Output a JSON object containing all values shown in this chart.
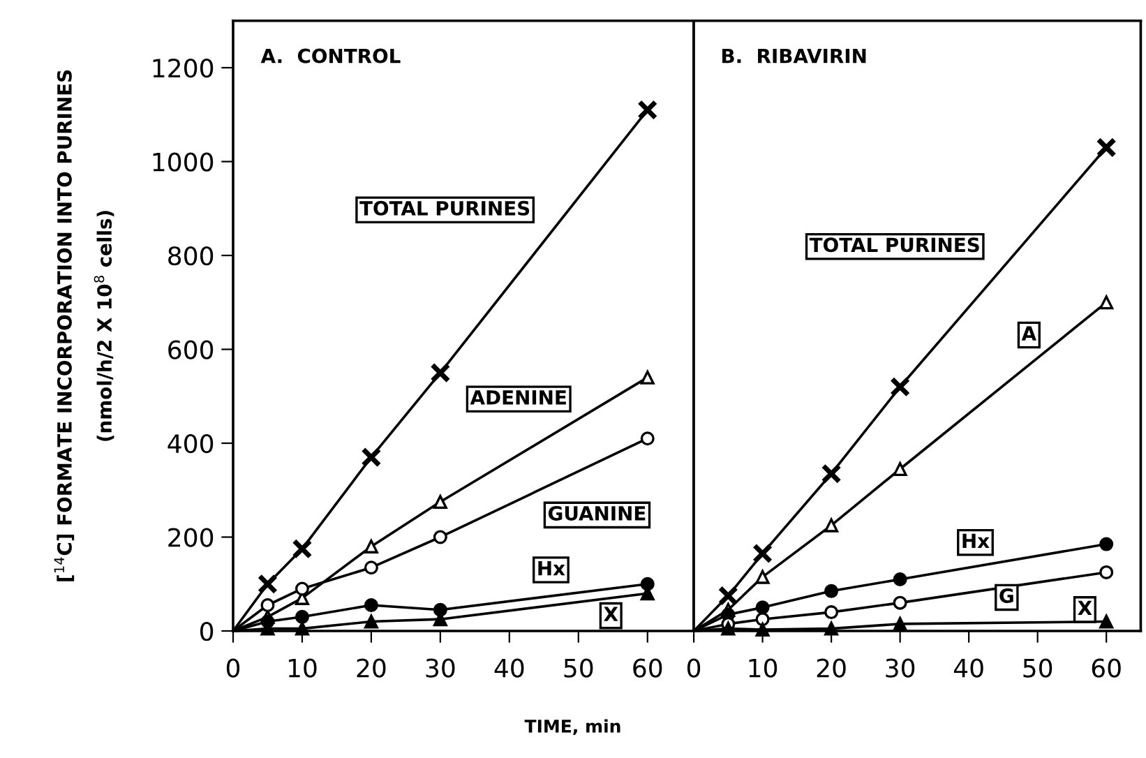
{
  "chart_data": [
    {
      "type": "line",
      "title": "A.  CONTROL",
      "ylabel": "[$^{14}$C] FORMATE INCORPORATION INTO PURINES\n(nmol/h/2 X 10$^{8}$ cells)",
      "xlabel": "TIME, min",
      "x": [
        0,
        5,
        10,
        20,
        30,
        60
      ],
      "xlim": [
        0,
        66.7
      ],
      "xticks": [
        0,
        10,
        20,
        30,
        40,
        50,
        60
      ],
      "ylim": [
        0,
        1300
      ],
      "yticks": [
        0,
        200,
        400,
        600,
        800,
        1000,
        1200
      ],
      "grid": false,
      "legend": false,
      "series": [
        {
          "name": "TOTAL PURINES",
          "color": "#000000",
          "marker": "cross",
          "values": [
            0,
            100,
            175,
            370,
            550,
            1110
          ]
        },
        {
          "name": "ADENINE",
          "color": "#000000",
          "marker": "triangle",
          "values": [
            0,
            30,
            70,
            180,
            275,
            540
          ]
        },
        {
          "name": "GUANINE",
          "color": "#000000",
          "marker": "circle",
          "values": [
            0,
            55,
            90,
            135,
            200,
            410
          ]
        },
        {
          "name": "Hx",
          "color": "#000000",
          "marker": "circle",
          "values": [
            0,
            20,
            30,
            55,
            45,
            100
          ]
        },
        {
          "name": "X",
          "color": "#000000",
          "marker": "triangle",
          "values": [
            0,
            5,
            5,
            20,
            25,
            80
          ]
        }
      ]
    },
    {
      "type": "line",
      "title": "B.  RIBAVIRIN",
      "tick_labels": "x",
      "x": [
        0,
        5,
        10,
        20,
        30,
        60
      ],
      "xlim": [
        0,
        65
      ],
      "xticks": [
        0,
        10,
        20,
        30,
        40,
        50,
        60
      ],
      "ylim": [
        0,
        1300
      ],
      "grid": false,
      "legend": false,
      "series": [
        {
          "name": "TOTAL PURINES",
          "color": "#000000",
          "marker": "cross",
          "values": [
            0,
            75,
            165,
            335,
            520,
            1030
          ]
        },
        {
          "name": "A",
          "color": "#000000",
          "marker": "triangle",
          "values": [
            0,
            45,
            115,
            225,
            345,
            700
          ]
        },
        {
          "name": "Hx",
          "color": "#000000",
          "marker": "circle",
          "values": [
            0,
            35,
            50,
            85,
            110,
            185
          ]
        },
        {
          "name": "G",
          "color": "#000000",
          "marker": "circle",
          "values": [
            0,
            15,
            25,
            40,
            60,
            125
          ]
        },
        {
          "name": "X",
          "color": "#000000",
          "marker": "triangle",
          "values": [
            0,
            5,
            3,
            5,
            15,
            20
          ]
        }
      ]
    }
  ]
}
